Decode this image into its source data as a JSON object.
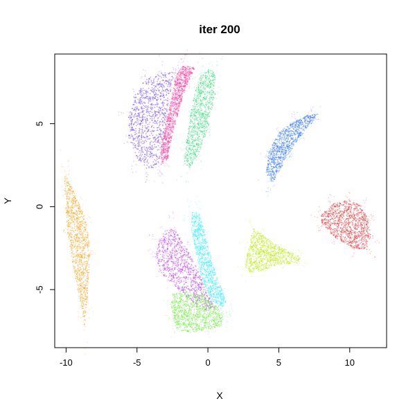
{
  "chart_data": {
    "type": "scatter",
    "title": "iter 200",
    "xlabel": "X",
    "ylabel": "Y",
    "xlim": [
      -10.8,
      12.6
    ],
    "ylim": [
      -8.5,
      9.2
    ],
    "x_ticks": [
      -10,
      -5,
      0,
      5,
      10
    ],
    "y_ticks": [
      -5,
      0,
      5
    ],
    "x_tick_labels": [
      "-10",
      "-5",
      "0",
      "5",
      "10"
    ],
    "y_tick_labels": [
      "-5",
      "0",
      "5"
    ],
    "grid": false,
    "legend": "none",
    "point_style": "tiny translucent dots",
    "clusters": [
      {
        "color": "#FF9900",
        "outline": [
          [
            -10.1,
            2.1
          ],
          [
            -9.8,
            1.6
          ],
          [
            -9.1,
            0.2
          ],
          [
            -8.5,
            -1.0
          ],
          [
            -8.3,
            -2.8
          ],
          [
            -8.5,
            -5.5
          ],
          [
            -8.7,
            -7.2
          ],
          [
            -9.0,
            -5.8
          ],
          [
            -9.5,
            -3.5
          ],
          [
            -9.9,
            -1.5
          ],
          [
            -10.1,
            0.5
          ]
        ]
      },
      {
        "color": "#6633FF",
        "outline": [
          [
            -3.5,
            8.1
          ],
          [
            -2.3,
            8.1
          ],
          [
            -2.8,
            6.3
          ],
          [
            -3.1,
            4.2
          ],
          [
            -3.5,
            2.5
          ],
          [
            -4.2,
            2.2
          ],
          [
            -5.0,
            2.9
          ],
          [
            -5.6,
            4.2
          ],
          [
            -5.6,
            5.6
          ],
          [
            -5.2,
            6.7
          ],
          [
            -4.5,
            7.6
          ]
        ]
      },
      {
        "color": "#FF3399",
        "outline": [
          [
            -1.8,
            8.5
          ],
          [
            -0.9,
            8.4
          ],
          [
            -1.6,
            7.1
          ],
          [
            -2.1,
            5.6
          ],
          [
            -2.6,
            4.0
          ],
          [
            -2.8,
            2.9
          ],
          [
            -3.3,
            2.5
          ],
          [
            -3.3,
            3.6
          ],
          [
            -2.9,
            5.3
          ],
          [
            -2.5,
            6.8
          ],
          [
            -2.3,
            7.8
          ]
        ]
      },
      {
        "color": "#33DD77",
        "outline": [
          [
            0.1,
            8.3
          ],
          [
            0.5,
            8.1
          ],
          [
            0.5,
            6.7
          ],
          [
            0.0,
            4.7
          ],
          [
            -0.6,
            3.2
          ],
          [
            -1.3,
            2.3
          ],
          [
            -1.7,
            2.6
          ],
          [
            -1.5,
            4.0
          ],
          [
            -1.2,
            5.6
          ],
          [
            -0.9,
            7.1
          ],
          [
            -0.5,
            7.9
          ]
        ]
      },
      {
        "color": "#3377FF",
        "outline": [
          [
            7.0,
            5.5
          ],
          [
            7.8,
            5.6
          ],
          [
            7.3,
            5.0
          ],
          [
            6.5,
            4.2
          ],
          [
            5.7,
            3.2
          ],
          [
            4.7,
            1.6
          ],
          [
            4.5,
            1.5
          ],
          [
            4.1,
            2.0
          ],
          [
            4.3,
            3.3
          ],
          [
            5.0,
            4.5
          ],
          [
            6.0,
            5.1
          ]
        ]
      },
      {
        "color": "#EE2222",
        "outline": [
          [
            8.2,
            -0.3
          ],
          [
            8.9,
            0.2
          ],
          [
            9.9,
            0.4
          ],
          [
            10.8,
            0.1
          ],
          [
            11.3,
            -0.7
          ],
          [
            11.5,
            -1.8
          ],
          [
            11.2,
            -2.6
          ],
          [
            10.2,
            -2.5
          ],
          [
            9.0,
            -1.9
          ],
          [
            8.2,
            -1.2
          ],
          [
            7.8,
            -0.7
          ]
        ]
      },
      {
        "color": "#BBEE11",
        "outline": [
          [
            3.2,
            -1.3
          ],
          [
            4.0,
            -1.8
          ],
          [
            5.0,
            -2.4
          ],
          [
            6.0,
            -2.8
          ],
          [
            6.6,
            -3.1
          ],
          [
            6.3,
            -3.4
          ],
          [
            5.0,
            -3.5
          ],
          [
            4.0,
            -3.8
          ],
          [
            3.0,
            -4.0
          ],
          [
            2.6,
            -3.6
          ],
          [
            2.9,
            -2.4
          ]
        ]
      },
      {
        "color": "#BB33FF",
        "outline": [
          [
            -3.1,
            -1.5
          ],
          [
            -2.4,
            -1.3
          ],
          [
            -1.5,
            -2.5
          ],
          [
            -0.7,
            -3.8
          ],
          [
            -0.1,
            -5.1
          ],
          [
            0.5,
            -6.1
          ],
          [
            0.0,
            -6.3
          ],
          [
            -1.0,
            -5.8
          ],
          [
            -2.3,
            -4.9
          ],
          [
            -3.3,
            -4.0
          ],
          [
            -3.7,
            -3.0
          ],
          [
            -3.5,
            -2.2
          ]
        ]
      },
      {
        "color": "#33EEFF",
        "outline": [
          [
            -1.1,
            -0.3
          ],
          [
            -0.6,
            -0.4
          ],
          [
            -0.1,
            -2.0
          ],
          [
            0.4,
            -3.6
          ],
          [
            0.9,
            -4.8
          ],
          [
            1.3,
            -5.7
          ],
          [
            1.0,
            -6.2
          ],
          [
            0.2,
            -5.6
          ],
          [
            -0.4,
            -4.4
          ],
          [
            -0.8,
            -2.9
          ],
          [
            -1.2,
            -1.3
          ]
        ]
      },
      {
        "color": "#66EE33",
        "outline": [
          [
            -2.5,
            -5.2
          ],
          [
            -1.5,
            -5.1
          ],
          [
            -0.4,
            -5.3
          ],
          [
            0.5,
            -5.9
          ],
          [
            1.1,
            -6.5
          ],
          [
            1.0,
            -7.2
          ],
          [
            0.0,
            -7.4
          ],
          [
            -1.2,
            -7.6
          ],
          [
            -2.2,
            -7.4
          ],
          [
            -2.5,
            -6.6
          ],
          [
            -2.6,
            -5.8
          ]
        ]
      }
    ]
  }
}
